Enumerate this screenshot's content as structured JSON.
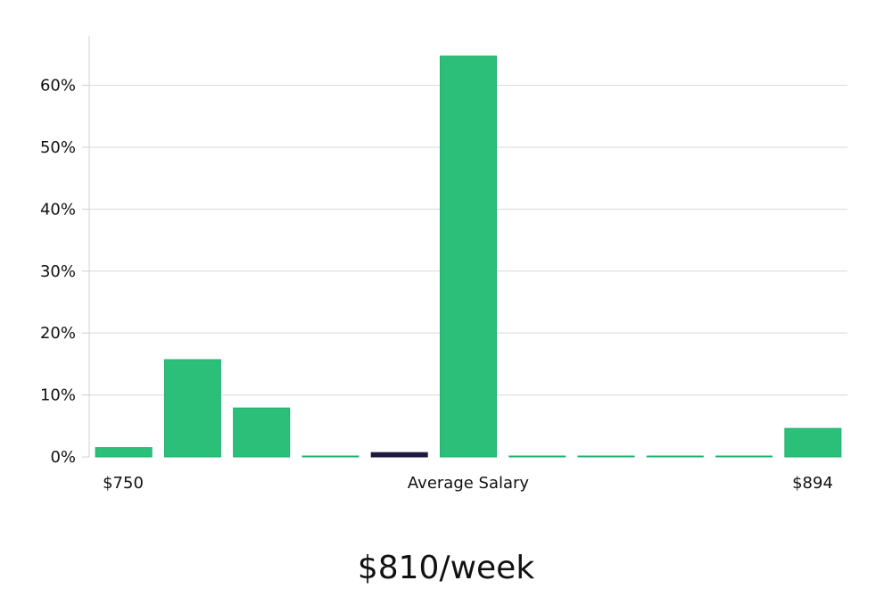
{
  "chart_data": {
    "type": "bar",
    "categories": [
      "",
      "",
      "",
      "",
      "",
      "",
      "",
      "",
      "",
      "",
      ""
    ],
    "values": [
      1.5,
      15.7,
      7.9,
      0.1,
      0.7,
      64.7,
      0.1,
      0.1,
      0.1,
      0.1,
      4.6
    ],
    "highlight_index": 4,
    "ylim": [
      0,
      68
    ],
    "yticks": [
      "0%",
      "10%",
      "20%",
      "30%",
      "40%",
      "50%",
      "60%"
    ],
    "x_labels": {
      "left": "$750",
      "center": "Average Salary",
      "right": "$894"
    },
    "bottom_value": "$810/week",
    "colors": {
      "bar": "#2bbf7a",
      "bar_stroke": "#1fb06d",
      "highlight": "#1d1a3f",
      "grid": "#d9d9d9",
      "axis": "#d0d0d0"
    },
    "grid": true
  }
}
